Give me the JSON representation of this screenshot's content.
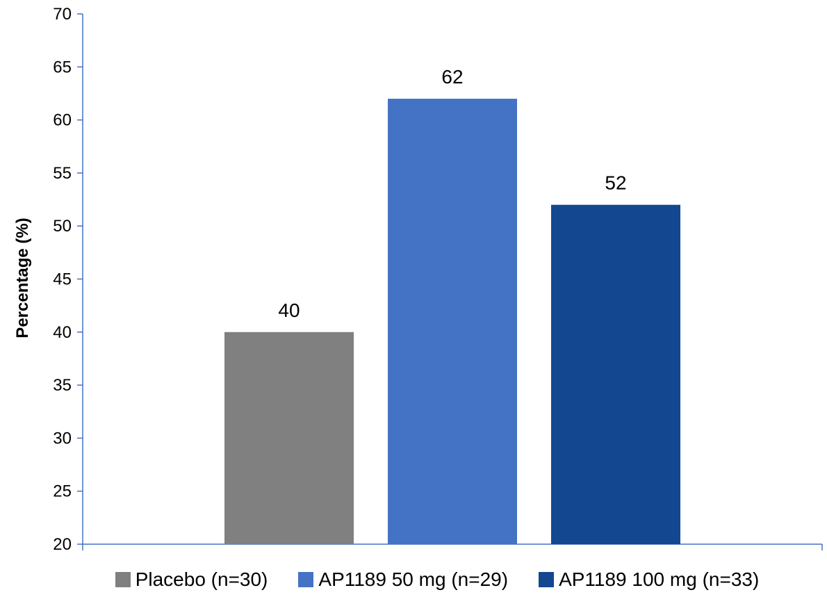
{
  "chart_data": {
    "type": "bar",
    "categories": [
      "Placebo (n=30)",
      "AP1189 50 mg (n=29)",
      "AP1189 100 mg (n=33)"
    ],
    "series": [
      {
        "name": "Placebo (n=30)",
        "value": 40,
        "color": "#808080"
      },
      {
        "name": "AP1189 50 mg (n=29)",
        "value": 62,
        "color": "#4472C4"
      },
      {
        "name": "AP1189 100 mg (n=33)",
        "value": 52,
        "color": "#134890"
      }
    ],
    "data_labels": [
      "40",
      "62",
      "52"
    ],
    "ylabel": "Percentage (%)",
    "ylim": [
      20,
      70
    ],
    "yticks": [
      20,
      25,
      30,
      35,
      40,
      45,
      50,
      55,
      60,
      65,
      70
    ],
    "grid": false,
    "legend_position": "bottom",
    "axis_color": "#4472C4"
  }
}
